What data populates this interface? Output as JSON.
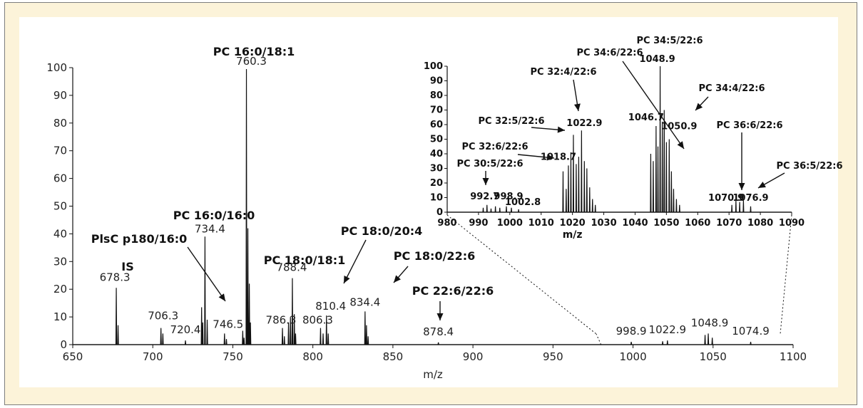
{
  "colors": {
    "frame_background": "#fcf3d9",
    "plot_background": "#ffffff",
    "trace": "#111111"
  },
  "chart_data": [
    {
      "type": "line",
      "name": "main-spectrum",
      "xlabel": "m/z",
      "ylabel": "",
      "xlim": [
        650,
        1100
      ],
      "ylim": [
        0,
        100
      ],
      "x_ticks": [
        650,
        700,
        750,
        800,
        850,
        900,
        950,
        1000,
        1050,
        1100
      ],
      "y_ticks": [
        0,
        10,
        20,
        30,
        40,
        50,
        60,
        70,
        80,
        90,
        100
      ],
      "peaks": [
        {
          "x": 677.2,
          "y": 20.5,
          "label": "678.3"
        },
        {
          "x": 678.3,
          "y": 7,
          "label": ""
        },
        {
          "x": 705.1,
          "y": 6,
          "label": "706.3"
        },
        {
          "x": 706.3,
          "y": 4,
          "label": ""
        },
        {
          "x": 720.4,
          "y": 1.5,
          "label": "720.4"
        },
        {
          "x": 730.5,
          "y": 13.5,
          "label": ""
        },
        {
          "x": 731.2,
          "y": 8,
          "label": ""
        },
        {
          "x": 732.6,
          "y": 39,
          "label": "734.4"
        },
        {
          "x": 734.0,
          "y": 9,
          "label": ""
        },
        {
          "x": 744.8,
          "y": 4,
          "label": "746.5"
        },
        {
          "x": 746.0,
          "y": 2,
          "label": ""
        },
        {
          "x": 756.2,
          "y": 5,
          "label": ""
        },
        {
          "x": 757.0,
          "y": 2.5,
          "label": ""
        },
        {
          "x": 758.5,
          "y": 99.5,
          "label": "760.3"
        },
        {
          "x": 759.4,
          "y": 42,
          "label": ""
        },
        {
          "x": 760.3,
          "y": 22,
          "label": ""
        },
        {
          "x": 761.0,
          "y": 8,
          "label": ""
        },
        {
          "x": 781.0,
          "y": 6,
          "label": "786.3"
        },
        {
          "x": 782.2,
          "y": 3,
          "label": ""
        },
        {
          "x": 784.8,
          "y": 8,
          "label": ""
        },
        {
          "x": 786.0,
          "y": 10,
          "label": ""
        },
        {
          "x": 787.2,
          "y": 24,
          "label": "788.4"
        },
        {
          "x": 788.4,
          "y": 11,
          "label": ""
        },
        {
          "x": 789.2,
          "y": 4,
          "label": ""
        },
        {
          "x": 804.8,
          "y": 6,
          "label": "806.3"
        },
        {
          "x": 806.4,
          "y": 4,
          "label": ""
        },
        {
          "x": 808.5,
          "y": 10.5,
          "label": "810.4"
        },
        {
          "x": 809.6,
          "y": 4,
          "label": ""
        },
        {
          "x": 832.6,
          "y": 12,
          "label": "834.4"
        },
        {
          "x": 833.5,
          "y": 7,
          "label": ""
        },
        {
          "x": 834.5,
          "y": 3,
          "label": ""
        },
        {
          "x": 878.4,
          "y": 0.8,
          "label": "878.4"
        },
        {
          "x": 998.9,
          "y": 1,
          "label": "998.9"
        },
        {
          "x": 1018.5,
          "y": 1.2,
          "label": ""
        },
        {
          "x": 1021.5,
          "y": 1.5,
          "label": "1022.9"
        },
        {
          "x": 1045.0,
          "y": 3.5,
          "label": ""
        },
        {
          "x": 1047.0,
          "y": 4,
          "label": "1048.9"
        },
        {
          "x": 1049.5,
          "y": 2.5,
          "label": ""
        },
        {
          "x": 1073.5,
          "y": 1,
          "label": "1074.9"
        }
      ],
      "annotations": [
        {
          "text": "PC 16:0/18:1"
        },
        {
          "text": "IS"
        },
        {
          "text": "PC 16:0/16:0"
        },
        {
          "text": "PlsC p180/16:0"
        },
        {
          "text": "PC 18:0/18:1"
        },
        {
          "text": "PC 18:0/20:4"
        },
        {
          "text": "PC 18:0/22:6"
        },
        {
          "text": "PC 22:6/22:6"
        }
      ]
    },
    {
      "type": "line",
      "name": "inset-spectrum",
      "xlabel": "m/z",
      "ylabel": "",
      "xlim": [
        980,
        1090
      ],
      "ylim": [
        0,
        100
      ],
      "x_ticks": [
        980,
        990,
        1000,
        1010,
        1020,
        1030,
        1040,
        1050,
        1060,
        1070,
        1080,
        1090
      ],
      "y_ticks": [
        0,
        10,
        20,
        30,
        40,
        50,
        60,
        70,
        80,
        90,
        100
      ],
      "peaks": [
        {
          "x": 991.5,
          "y": 3,
          "label": ""
        },
        {
          "x": 992.7,
          "y": 5,
          "label": "992.7"
        },
        {
          "x": 994.0,
          "y": 2.5,
          "label": ""
        },
        {
          "x": 995.4,
          "y": 4,
          "label": ""
        },
        {
          "x": 996.8,
          "y": 3,
          "label": ""
        },
        {
          "x": 998.9,
          "y": 4,
          "label": "998.9"
        },
        {
          "x": 1000.5,
          "y": 3,
          "label": ""
        },
        {
          "x": 1002.8,
          "y": 2,
          "label": "1002.8"
        },
        {
          "x": 1017.0,
          "y": 28,
          "label": ""
        },
        {
          "x": 1018.0,
          "y": 16,
          "label": ""
        },
        {
          "x": 1018.7,
          "y": 32,
          "label": "1018.7"
        },
        {
          "x": 1019.5,
          "y": 41,
          "label": ""
        },
        {
          "x": 1020.3,
          "y": 53,
          "label": ""
        },
        {
          "x": 1021.2,
          "y": 33,
          "label": ""
        },
        {
          "x": 1022.0,
          "y": 38,
          "label": ""
        },
        {
          "x": 1022.9,
          "y": 56,
          "label": "1022.9"
        },
        {
          "x": 1023.8,
          "y": 35,
          "label": ""
        },
        {
          "x": 1024.6,
          "y": 30,
          "label": ""
        },
        {
          "x": 1025.5,
          "y": 17,
          "label": ""
        },
        {
          "x": 1026.4,
          "y": 9,
          "label": ""
        },
        {
          "x": 1027.3,
          "y": 5,
          "label": ""
        },
        {
          "x": 1045.0,
          "y": 40,
          "label": ""
        },
        {
          "x": 1045.8,
          "y": 35,
          "label": ""
        },
        {
          "x": 1046.7,
          "y": 59,
          "label": "1046.7"
        },
        {
          "x": 1047.3,
          "y": 45,
          "label": ""
        },
        {
          "x": 1048.0,
          "y": 100,
          "label": "1048.9"
        },
        {
          "x": 1048.7,
          "y": 62,
          "label": ""
        },
        {
          "x": 1049.3,
          "y": 70,
          "label": ""
        },
        {
          "x": 1050.0,
          "y": 48,
          "label": ""
        },
        {
          "x": 1050.9,
          "y": 50,
          "label": "1050.9"
        },
        {
          "x": 1051.6,
          "y": 28,
          "label": ""
        },
        {
          "x": 1052.3,
          "y": 16,
          "label": ""
        },
        {
          "x": 1053.2,
          "y": 9,
          "label": ""
        },
        {
          "x": 1054.2,
          "y": 5,
          "label": ""
        },
        {
          "x": 1070.9,
          "y": 5,
          "label": "1070.9"
        },
        {
          "x": 1072.2,
          "y": 8,
          "label": ""
        },
        {
          "x": 1073.4,
          "y": 7,
          "label": ""
        },
        {
          "x": 1074.6,
          "y": 8,
          "label": ""
        },
        {
          "x": 1076.9,
          "y": 4,
          "label": "1076.9"
        }
      ],
      "annotations": [
        {
          "text": "PC 34:5/22:6"
        },
        {
          "text": "PC 34:6/22:6"
        },
        {
          "text": "PC 32:4/22:6"
        },
        {
          "text": "PC 34:4/22:6"
        },
        {
          "text": "PC 32:5/22:6"
        },
        {
          "text": "PC 32:6/22:6"
        },
        {
          "text": "PC 36:6/22:6"
        },
        {
          "text": "PC 36:5/22:6"
        },
        {
          "text": "PC 30:5/22:6"
        }
      ]
    }
  ]
}
